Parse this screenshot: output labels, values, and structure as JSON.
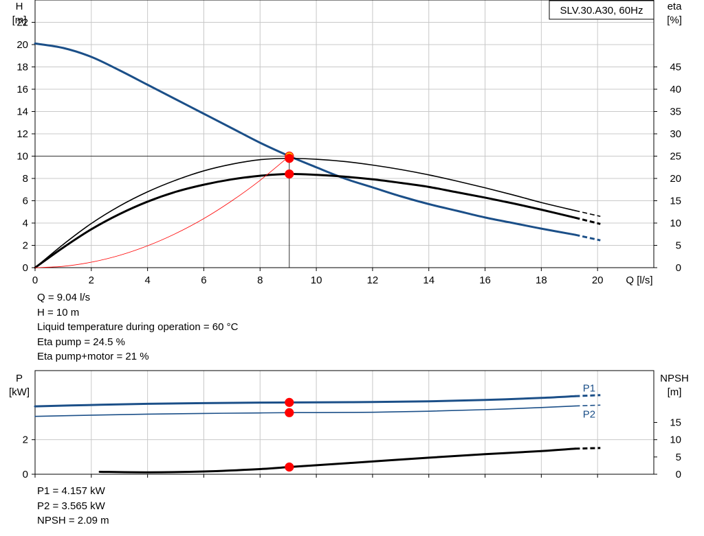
{
  "model_label": "SLV.30.A30, 60Hz",
  "colors": {
    "blue": "#1b4f88",
    "black": "#000000",
    "red": "#ff0000",
    "grid": "#c8c8c8",
    "yellow": "#ffcc00"
  },
  "chart_data": [
    {
      "type": "line",
      "name": "performance",
      "xlabel": "Q [l/s]",
      "ylabel_left": [
        "H",
        "[m]"
      ],
      "ylabel_right": [
        "eta",
        "[%]"
      ],
      "xlim": [
        0,
        22
      ],
      "xticks": [
        0,
        2,
        4,
        6,
        8,
        10,
        12,
        14,
        16,
        18,
        20
      ],
      "ylim_left": [
        0,
        24
      ],
      "yticks_left": [
        0,
        2,
        4,
        6,
        8,
        10,
        12,
        14,
        16,
        18,
        20,
        22
      ],
      "ylim_right": [
        0,
        60
      ],
      "yticks_right": [
        0,
        5,
        10,
        15,
        20,
        25,
        30,
        35,
        40,
        45
      ],
      "grid": true,
      "series": [
        {
          "axis": "left",
          "color": "#1b4f88",
          "width": 3,
          "x": [
            0,
            1,
            2,
            3,
            4,
            5,
            6,
            7,
            8,
            9.04,
            10,
            11,
            12,
            13,
            14,
            15,
            16,
            17,
            18,
            19.2
          ],
          "y": [
            20.1,
            19.7,
            18.9,
            17.7,
            16.4,
            15.1,
            13.8,
            12.5,
            11.2,
            10,
            9.0,
            8.0,
            7.2,
            6.4,
            5.7,
            5.1,
            4.5,
            4.0,
            3.5,
            2.95
          ],
          "ext_x": [
            19.2,
            20.1
          ],
          "ext_y": [
            2.95,
            2.45
          ]
        },
        {
          "axis": "right",
          "color": "#000000",
          "width": 1.6,
          "x": [
            0,
            1,
            2,
            3,
            4,
            5,
            6,
            7,
            8,
            9.04,
            10,
            11,
            12,
            13,
            14,
            15,
            16,
            17,
            18,
            19.2
          ],
          "y": [
            0,
            5.2,
            9.9,
            13.8,
            17.0,
            19.6,
            21.7,
            23.2,
            24.2,
            24.5,
            24.3,
            23.8,
            23.0,
            22.0,
            20.8,
            19.4,
            17.9,
            16.3,
            14.6,
            12.8
          ],
          "ext_x": [
            19.2,
            20.1
          ],
          "ext_y": [
            12.8,
            11.5
          ]
        },
        {
          "axis": "right",
          "color": "#000000",
          "width": 3,
          "x": [
            0,
            1,
            2,
            3,
            4,
            5,
            6,
            7,
            8,
            9.04,
            10,
            11,
            12,
            13,
            14,
            15,
            16,
            17,
            18,
            19.2
          ],
          "y": [
            0,
            4.5,
            8.6,
            12.0,
            14.8,
            17.0,
            18.6,
            19.8,
            20.6,
            21.0,
            20.8,
            20.4,
            19.8,
            19.0,
            18.1,
            16.9,
            15.7,
            14.4,
            13.0,
            11.2
          ],
          "ext_x": [
            19.2,
            20.1
          ],
          "ext_y": [
            11.2,
            9.8
          ]
        },
        {
          "axis": "left",
          "color": "#ff0000",
          "width": 0.8,
          "x": [
            0,
            1,
            2,
            3,
            4,
            5,
            6,
            7,
            8,
            9.04
          ],
          "y": [
            0,
            0.12,
            0.49,
            1.1,
            1.96,
            3.06,
            4.4,
            6.0,
            7.83,
            10
          ],
          "ext_x": [],
          "ext_y": []
        }
      ],
      "reference_lines": {
        "h": 10,
        "q": 9.04
      },
      "points": [
        {
          "axis": "left",
          "x": 9.04,
          "y": 10,
          "fill": "#ffcc00",
          "stroke": "#ff0000"
        },
        {
          "axis": "right",
          "x": 9.04,
          "y": 24.5,
          "fill": "#ff0000",
          "stroke": "#ff0000"
        },
        {
          "axis": "right",
          "x": 9.04,
          "y": 21,
          "fill": "#ff0000",
          "stroke": "#ff0000"
        }
      ]
    },
    {
      "type": "line",
      "name": "power-npsh",
      "xlim": [
        0,
        22
      ],
      "xticks": [
        0,
        2,
        4,
        6,
        8,
        10,
        12,
        14,
        16,
        18,
        20
      ],
      "ylabel_left": [
        "P",
        "[kW]"
      ],
      "ylabel_right": [
        "NPSH",
        "[m]"
      ],
      "ylim_left": [
        0,
        6
      ],
      "yticks_left": [
        0,
        2
      ],
      "ylim_right": [
        0,
        30
      ],
      "yticks_right": [
        0,
        5,
        10,
        15
      ],
      "grid": true,
      "series": [
        {
          "axis": "left",
          "name": "P1",
          "color": "#1b4f88",
          "width": 3,
          "x": [
            0,
            2,
            4,
            6,
            8,
            9.04,
            10,
            12,
            14,
            16,
            18,
            19.2
          ],
          "y": [
            3.93,
            4.01,
            4.08,
            4.12,
            4.145,
            4.157,
            4.16,
            4.18,
            4.22,
            4.3,
            4.42,
            4.52
          ],
          "ext_x": [
            19.2,
            20.1
          ],
          "ext_y": [
            4.52,
            4.58
          ]
        },
        {
          "axis": "left",
          "name": "P2",
          "color": "#1b4f88",
          "width": 1.6,
          "x": [
            0,
            2,
            4,
            6,
            8,
            9.04,
            10,
            12,
            14,
            16,
            18,
            19.2
          ],
          "y": [
            3.35,
            3.42,
            3.48,
            3.52,
            3.55,
            3.565,
            3.57,
            3.59,
            3.65,
            3.74,
            3.86,
            3.95
          ],
          "ext_x": [
            19.2,
            20.1
          ],
          "ext_y": [
            3.95,
            4.0
          ]
        },
        {
          "axis": "right",
          "name": "",
          "color": "#000000",
          "width": 3,
          "x": [
            2.3,
            4,
            6,
            8,
            9.04,
            10,
            12,
            14,
            16,
            18,
            19.2
          ],
          "y": [
            0.7,
            0.55,
            0.8,
            1.5,
            2.09,
            2.6,
            3.7,
            4.8,
            5.8,
            6.7,
            7.4
          ],
          "ext_x": [
            19.2,
            20.1
          ],
          "ext_y": [
            7.4,
            7.6
          ]
        }
      ],
      "series_labels": [
        "P1",
        "P2"
      ],
      "points": [
        {
          "axis": "left",
          "x": 9.04,
          "y": 4.157
        },
        {
          "axis": "left",
          "x": 9.04,
          "y": 3.565
        },
        {
          "axis": "right",
          "x": 9.04,
          "y": 2.09
        }
      ]
    }
  ],
  "info_top": [
    "Q = 9.04 l/s",
    "H = 10 m",
    "Liquid temperature during operation = 60 °C",
    "Eta pump = 24.5 %",
    "Eta pump+motor = 21 %"
  ],
  "info_bottom": [
    "P1 = 4.157 kW",
    "P2 = 3.565 kW",
    "NPSH = 2.09 m"
  ]
}
